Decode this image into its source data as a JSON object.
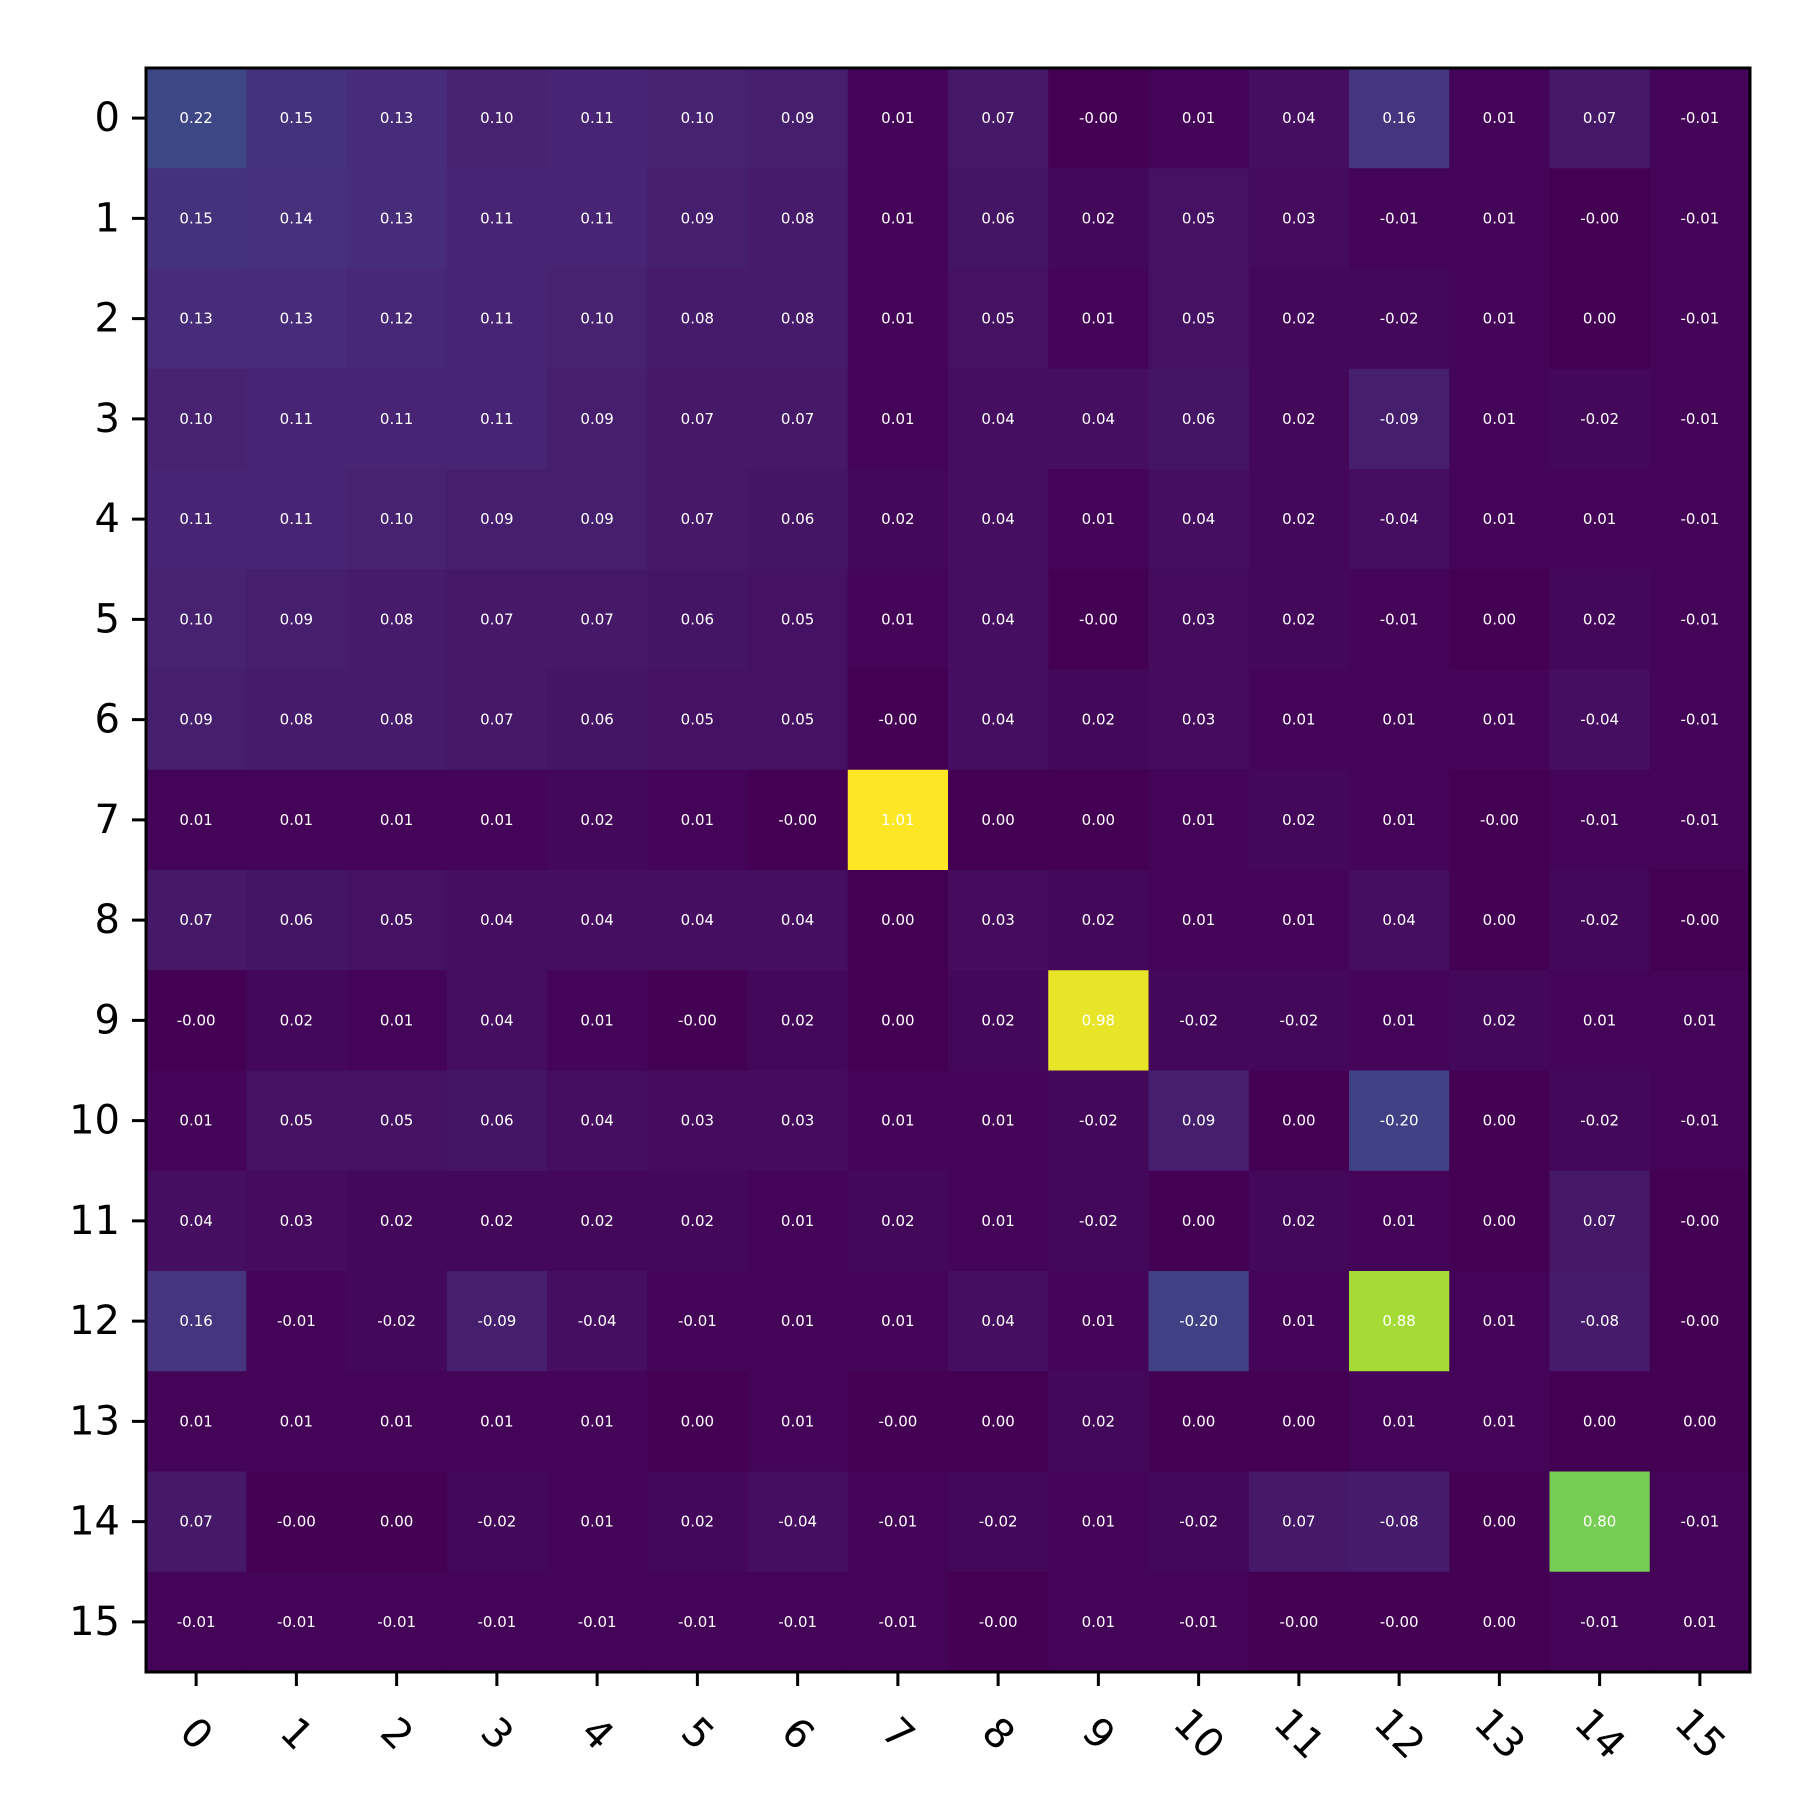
{
  "chart_data": {
    "type": "heatmap",
    "title": "",
    "xlabel": "",
    "ylabel": "",
    "colormap": "viridis",
    "vmin": -0.2,
    "vmax": 1.01,
    "x_tick_labels": [
      "0",
      "1",
      "2",
      "3",
      "4",
      "5",
      "6",
      "7",
      "8",
      "9",
      "10",
      "11",
      "12",
      "13",
      "14",
      "15"
    ],
    "y_tick_labels": [
      "0",
      "1",
      "2",
      "3",
      "4",
      "5",
      "6",
      "7",
      "8",
      "9",
      "10",
      "11",
      "12",
      "13",
      "14",
      "15"
    ],
    "x_tick_rotation": 45,
    "show_cell_labels": true,
    "values": [
      [
        0.22,
        0.15,
        0.13,
        0.1,
        0.11,
        0.1,
        0.09,
        0.01,
        0.07,
        -0.0,
        0.01,
        0.04,
        0.16,
        0.01,
        0.07,
        -0.01
      ],
      [
        0.15,
        0.14,
        0.13,
        0.11,
        0.11,
        0.09,
        0.08,
        0.01,
        0.06,
        0.02,
        0.05,
        0.03,
        -0.01,
        0.01,
        -0.0,
        -0.01
      ],
      [
        0.13,
        0.13,
        0.12,
        0.11,
        0.1,
        0.08,
        0.08,
        0.01,
        0.05,
        0.01,
        0.05,
        0.02,
        -0.02,
        0.01,
        0.0,
        -0.01
      ],
      [
        0.1,
        0.11,
        0.11,
        0.11,
        0.09,
        0.07,
        0.07,
        0.01,
        0.04,
        0.04,
        0.06,
        0.02,
        -0.09,
        0.01,
        -0.02,
        -0.01
      ],
      [
        0.11,
        0.11,
        0.1,
        0.09,
        0.09,
        0.07,
        0.06,
        0.02,
        0.04,
        0.01,
        0.04,
        0.02,
        -0.04,
        0.01,
        0.01,
        -0.01
      ],
      [
        0.1,
        0.09,
        0.08,
        0.07,
        0.07,
        0.06,
        0.05,
        0.01,
        0.04,
        -0.0,
        0.03,
        0.02,
        -0.01,
        0.0,
        0.02,
        -0.01
      ],
      [
        0.09,
        0.08,
        0.08,
        0.07,
        0.06,
        0.05,
        0.05,
        -0.0,
        0.04,
        0.02,
        0.03,
        0.01,
        0.01,
        0.01,
        -0.04,
        -0.01
      ],
      [
        0.01,
        0.01,
        0.01,
        0.01,
        0.02,
        0.01,
        -0.0,
        1.01,
        0.0,
        0.0,
        0.01,
        0.02,
        0.01,
        -0.0,
        -0.01,
        -0.01
      ],
      [
        0.07,
        0.06,
        0.05,
        0.04,
        0.04,
        0.04,
        0.04,
        0.0,
        0.03,
        0.02,
        0.01,
        0.01,
        0.04,
        0.0,
        -0.02,
        -0.0
      ],
      [
        -0.0,
        0.02,
        0.01,
        0.04,
        0.01,
        -0.0,
        0.02,
        0.0,
        0.02,
        0.98,
        -0.02,
        -0.02,
        0.01,
        0.02,
        0.01,
        0.01
      ],
      [
        0.01,
        0.05,
        0.05,
        0.06,
        0.04,
        0.03,
        0.03,
        0.01,
        0.01,
        -0.02,
        0.09,
        0.0,
        -0.2,
        0.0,
        -0.02,
        -0.01
      ],
      [
        0.04,
        0.03,
        0.02,
        0.02,
        0.02,
        0.02,
        0.01,
        0.02,
        0.01,
        -0.02,
        0.0,
        0.02,
        0.01,
        0.0,
        0.07,
        -0.0
      ],
      [
        0.16,
        -0.01,
        -0.02,
        -0.09,
        -0.04,
        -0.01,
        0.01,
        0.01,
        0.04,
        0.01,
        -0.2,
        0.01,
        0.88,
        0.01,
        -0.08,
        -0.0
      ],
      [
        0.01,
        0.01,
        0.01,
        0.01,
        0.01,
        0.0,
        0.01,
        -0.0,
        0.0,
        0.02,
        0.0,
        0.0,
        0.01,
        0.01,
        0.0,
        0.0
      ],
      [
        0.07,
        -0.0,
        0.0,
        -0.02,
        0.01,
        0.02,
        -0.04,
        -0.01,
        -0.02,
        0.01,
        -0.02,
        0.07,
        -0.08,
        0.0,
        0.8,
        -0.01
      ],
      [
        -0.01,
        -0.01,
        -0.01,
        -0.01,
        -0.01,
        -0.01,
        -0.01,
        -0.01,
        -0.0,
        0.01,
        -0.01,
        -0.0,
        -0.0,
        0.0,
        -0.01,
        0.01
      ]
    ]
  }
}
